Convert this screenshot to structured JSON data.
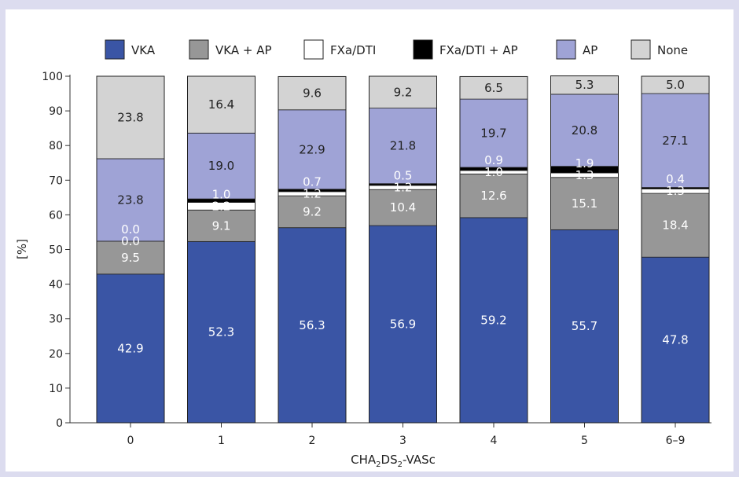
{
  "chart_data": {
    "type": "bar",
    "stacked": true,
    "xlabel": {
      "prefix": "CHA",
      "sub1": "2",
      "mid": "DS",
      "sub2": "2",
      "suffix": "-VASc"
    },
    "ylabel": "[%]",
    "ylim": [
      0,
      100
    ],
    "yticks": [
      0,
      10,
      20,
      30,
      40,
      50,
      60,
      70,
      80,
      90,
      100
    ],
    "categories": [
      "0",
      "1",
      "2",
      "3",
      "4",
      "5",
      "6–9"
    ],
    "legend_position": "top",
    "series": [
      {
        "name": "VKA",
        "color": "#3a55a5",
        "label_color": "#ffffff",
        "values": [
          42.9,
          52.3,
          56.3,
          56.9,
          59.2,
          55.7,
          47.8
        ]
      },
      {
        "name": "VKA + AP",
        "color": "#979797",
        "label_color": "#ffffff",
        "values": [
          9.5,
          9.1,
          9.2,
          10.4,
          12.6,
          15.1,
          18.4
        ]
      },
      {
        "name": "FXa/DTI",
        "color": "#ffffff",
        "label_color": "#ffffff",
        "values": [
          0.0,
          2.2,
          1.2,
          1.2,
          1.0,
          1.3,
          1.3
        ]
      },
      {
        "name": "FXa/DTI + AP",
        "color": "#000000",
        "label_color": "#ffffff",
        "values": [
          0.0,
          1.0,
          0.7,
          0.5,
          0.9,
          1.9,
          0.4
        ]
      },
      {
        "name": "AP",
        "color": "#9fa3d6",
        "label_color": "#222222",
        "values": [
          23.8,
          19.0,
          22.9,
          21.8,
          19.7,
          20.8,
          27.1
        ]
      },
      {
        "name": "None",
        "color": "#d3d3d3",
        "label_color": "#222222",
        "values": [
          23.8,
          16.4,
          9.6,
          9.2,
          6.5,
          5.3,
          5.0
        ]
      }
    ]
  }
}
